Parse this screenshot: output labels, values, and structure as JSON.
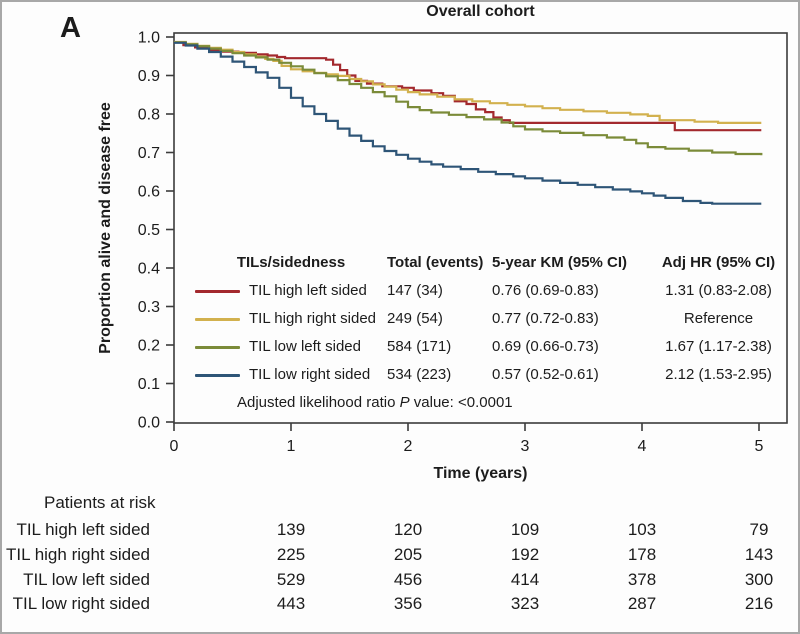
{
  "panel_label": "A",
  "title": "Overall cohort",
  "colors": {
    "red": "#a3292e",
    "gold": "#d2b14e",
    "olive": "#7b8b39",
    "navy": "#2e5577",
    "axis": "#3c3c3c",
    "text": "#1c1c1c",
    "frame": "#a8a8a8"
  },
  "chart_data": {
    "type": "line",
    "subtype": "kaplan-meier-step",
    "title": "Overall cohort",
    "xlabel": "Time (years)",
    "ylabel": "Proportion alive and disease free",
    "xlim": [
      0,
      5.25
    ],
    "ylim": [
      0.0,
      1.0
    ],
    "x_ticks": [
      "0",
      "1",
      "2",
      "3",
      "4",
      "5"
    ],
    "y_ticks": [
      "0.0",
      "0.1",
      "0.2",
      "0.3",
      "0.4",
      "0.5",
      "0.6",
      "0.7",
      "0.8",
      "0.9",
      "1.0"
    ],
    "grid": false,
    "legend_position": "inside lower-center as table",
    "series": [
      {
        "name": "TIL high left sided",
        "color_key": "red",
        "points": [
          [
            0,
            0.986
          ],
          [
            0.08,
            0.979
          ],
          [
            0.18,
            0.973
          ],
          [
            0.3,
            0.966
          ],
          [
            0.42,
            0.962
          ],
          [
            0.55,
            0.959
          ],
          [
            0.7,
            0.955
          ],
          [
            0.8,
            0.952
          ],
          [
            0.88,
            0.948
          ],
          [
            0.95,
            0.945
          ],
          [
            1.3,
            0.941
          ],
          [
            1.36,
            0.928
          ],
          [
            1.42,
            0.914
          ],
          [
            1.48,
            0.9
          ],
          [
            1.55,
            0.886
          ],
          [
            1.65,
            0.879
          ],
          [
            1.78,
            0.872
          ],
          [
            1.95,
            0.868
          ],
          [
            2.05,
            0.861
          ],
          [
            2.2,
            0.854
          ],
          [
            2.3,
            0.847
          ],
          [
            2.4,
            0.833
          ],
          [
            2.5,
            0.826
          ],
          [
            2.58,
            0.812
          ],
          [
            2.66,
            0.805
          ],
          [
            2.73,
            0.791
          ],
          [
            2.8,
            0.784
          ],
          [
            2.87,
            0.777
          ],
          [
            4.2,
            0.777
          ],
          [
            4.28,
            0.758
          ],
          [
            5.02,
            0.758
          ]
        ]
      },
      {
        "name": "TIL high right sided",
        "color_key": "gold",
        "points": [
          [
            0,
            0.987
          ],
          [
            0.1,
            0.982
          ],
          [
            0.2,
            0.977
          ],
          [
            0.3,
            0.972
          ],
          [
            0.4,
            0.967
          ],
          [
            0.5,
            0.961
          ],
          [
            0.6,
            0.955
          ],
          [
            0.7,
            0.949
          ],
          [
            0.78,
            0.943
          ],
          [
            0.85,
            0.938
          ],
          [
            0.92,
            0.925
          ],
          [
            1.0,
            0.916
          ],
          [
            1.1,
            0.911
          ],
          [
            1.2,
            0.907
          ],
          [
            1.3,
            0.903
          ],
          [
            1.4,
            0.899
          ],
          [
            1.5,
            0.891
          ],
          [
            1.6,
            0.885
          ],
          [
            1.7,
            0.877
          ],
          [
            1.8,
            0.871
          ],
          [
            1.9,
            0.863
          ],
          [
            2.0,
            0.857
          ],
          [
            2.1,
            0.851
          ],
          [
            2.25,
            0.845
          ],
          [
            2.4,
            0.838
          ],
          [
            2.55,
            0.833
          ],
          [
            2.7,
            0.828
          ],
          [
            2.85,
            0.824
          ],
          [
            3.0,
            0.82
          ],
          [
            3.15,
            0.815
          ],
          [
            3.3,
            0.811
          ],
          [
            3.5,
            0.807
          ],
          [
            3.7,
            0.803
          ],
          [
            3.9,
            0.799
          ],
          [
            4.05,
            0.795
          ],
          [
            4.15,
            0.784
          ],
          [
            4.45,
            0.78
          ],
          [
            4.65,
            0.777
          ],
          [
            5.02,
            0.777
          ]
        ]
      },
      {
        "name": "TIL low left sided",
        "color_key": "olive",
        "points": [
          [
            0,
            0.986
          ],
          [
            0.1,
            0.981
          ],
          [
            0.2,
            0.976
          ],
          [
            0.3,
            0.97
          ],
          [
            0.4,
            0.964
          ],
          [
            0.5,
            0.958
          ],
          [
            0.6,
            0.952
          ],
          [
            0.7,
            0.947
          ],
          [
            0.8,
            0.941
          ],
          [
            0.9,
            0.933
          ],
          [
            1.0,
            0.924
          ],
          [
            1.1,
            0.915
          ],
          [
            1.2,
            0.906
          ],
          [
            1.3,
            0.898
          ],
          [
            1.4,
            0.888
          ],
          [
            1.5,
            0.878
          ],
          [
            1.6,
            0.868
          ],
          [
            1.7,
            0.857
          ],
          [
            1.8,
            0.846
          ],
          [
            1.9,
            0.832
          ],
          [
            2.0,
            0.818
          ],
          [
            2.1,
            0.81
          ],
          [
            2.2,
            0.804
          ],
          [
            2.35,
            0.798
          ],
          [
            2.5,
            0.792
          ],
          [
            2.65,
            0.786
          ],
          [
            2.8,
            0.778
          ],
          [
            2.9,
            0.768
          ],
          [
            3.0,
            0.76
          ],
          [
            3.15,
            0.755
          ],
          [
            3.3,
            0.751
          ],
          [
            3.5,
            0.745
          ],
          [
            3.7,
            0.739
          ],
          [
            3.85,
            0.733
          ],
          [
            3.95,
            0.724
          ],
          [
            4.05,
            0.714
          ],
          [
            4.2,
            0.71
          ],
          [
            4.4,
            0.705
          ],
          [
            4.6,
            0.7
          ],
          [
            4.8,
            0.696
          ],
          [
            5.02,
            0.693
          ]
        ]
      },
      {
        "name": "TIL low right sided",
        "color_key": "navy",
        "points": [
          [
            0,
            0.985
          ],
          [
            0.1,
            0.978
          ],
          [
            0.2,
            0.97
          ],
          [
            0.3,
            0.961
          ],
          [
            0.4,
            0.949
          ],
          [
            0.5,
            0.936
          ],
          [
            0.6,
            0.922
          ],
          [
            0.7,
            0.908
          ],
          [
            0.8,
            0.894
          ],
          [
            0.9,
            0.868
          ],
          [
            1.0,
            0.842
          ],
          [
            1.1,
            0.82
          ],
          [
            1.2,
            0.8
          ],
          [
            1.3,
            0.782
          ],
          [
            1.4,
            0.762
          ],
          [
            1.5,
            0.744
          ],
          [
            1.6,
            0.73
          ],
          [
            1.7,
            0.716
          ],
          [
            1.8,
            0.704
          ],
          [
            1.9,
            0.694
          ],
          [
            2.0,
            0.684
          ],
          [
            2.1,
            0.676
          ],
          [
            2.2,
            0.669
          ],
          [
            2.3,
            0.663
          ],
          [
            2.45,
            0.657
          ],
          [
            2.6,
            0.65
          ],
          [
            2.75,
            0.644
          ],
          [
            2.9,
            0.638
          ],
          [
            3.0,
            0.633
          ],
          [
            3.15,
            0.627
          ],
          [
            3.3,
            0.621
          ],
          [
            3.45,
            0.616
          ],
          [
            3.6,
            0.61
          ],
          [
            3.75,
            0.604
          ],
          [
            3.9,
            0.599
          ],
          [
            4.0,
            0.594
          ],
          [
            4.1,
            0.588
          ],
          [
            4.2,
            0.582
          ],
          [
            4.35,
            0.574
          ],
          [
            4.5,
            0.569
          ],
          [
            4.6,
            0.567
          ],
          [
            5.02,
            0.567
          ]
        ]
      }
    ]
  },
  "legend": {
    "headers": {
      "group": "TILs/sidedness",
      "total": "Total (events)",
      "km": "5-year KM (95% CI)",
      "hr": "Adj HR (95% CI)"
    },
    "rows": [
      {
        "label": "TIL high left sided",
        "total": "147 (34)",
        "km": "0.76 (0.69-0.83)",
        "hr": "1.31 (0.83-2.08)",
        "color_key": "red"
      },
      {
        "label": "TIL high right sided",
        "total": "249 (54)",
        "km": "0.77 (0.72-0.83)",
        "hr": "Reference",
        "color_key": "gold"
      },
      {
        "label": "TIL low left sided",
        "total": "584 (171)",
        "km": "0.69 (0.66-0.73)",
        "hr": "1.67 (1.17-2.38)",
        "color_key": "olive"
      },
      {
        "label": "TIL low right sided",
        "total": "534 (223)",
        "km": "0.57 (0.52-0.61)",
        "hr": "2.12 (1.53-2.95)",
        "color_key": "navy"
      }
    ],
    "p_value": {
      "prefix": "Adjusted likelihood ratio ",
      "italic": "P",
      "suffix": " value: <0.0001"
    }
  },
  "risk_table": {
    "title": "Patients at risk",
    "time_points": [
      "1",
      "2",
      "3",
      "4",
      "5"
    ],
    "rows": [
      {
        "label": "TIL high left sided",
        "counts": [
          "139",
          "120",
          "109",
          "103",
          "79"
        ]
      },
      {
        "label": "TIL high right sided",
        "counts": [
          "225",
          "205",
          "192",
          "178",
          "143"
        ]
      },
      {
        "label": "TIL low left sided",
        "counts": [
          "529",
          "456",
          "414",
          "378",
          "300"
        ]
      },
      {
        "label": "TIL low right sided",
        "counts": [
          "443",
          "356",
          "323",
          "287",
          "216"
        ]
      }
    ]
  }
}
